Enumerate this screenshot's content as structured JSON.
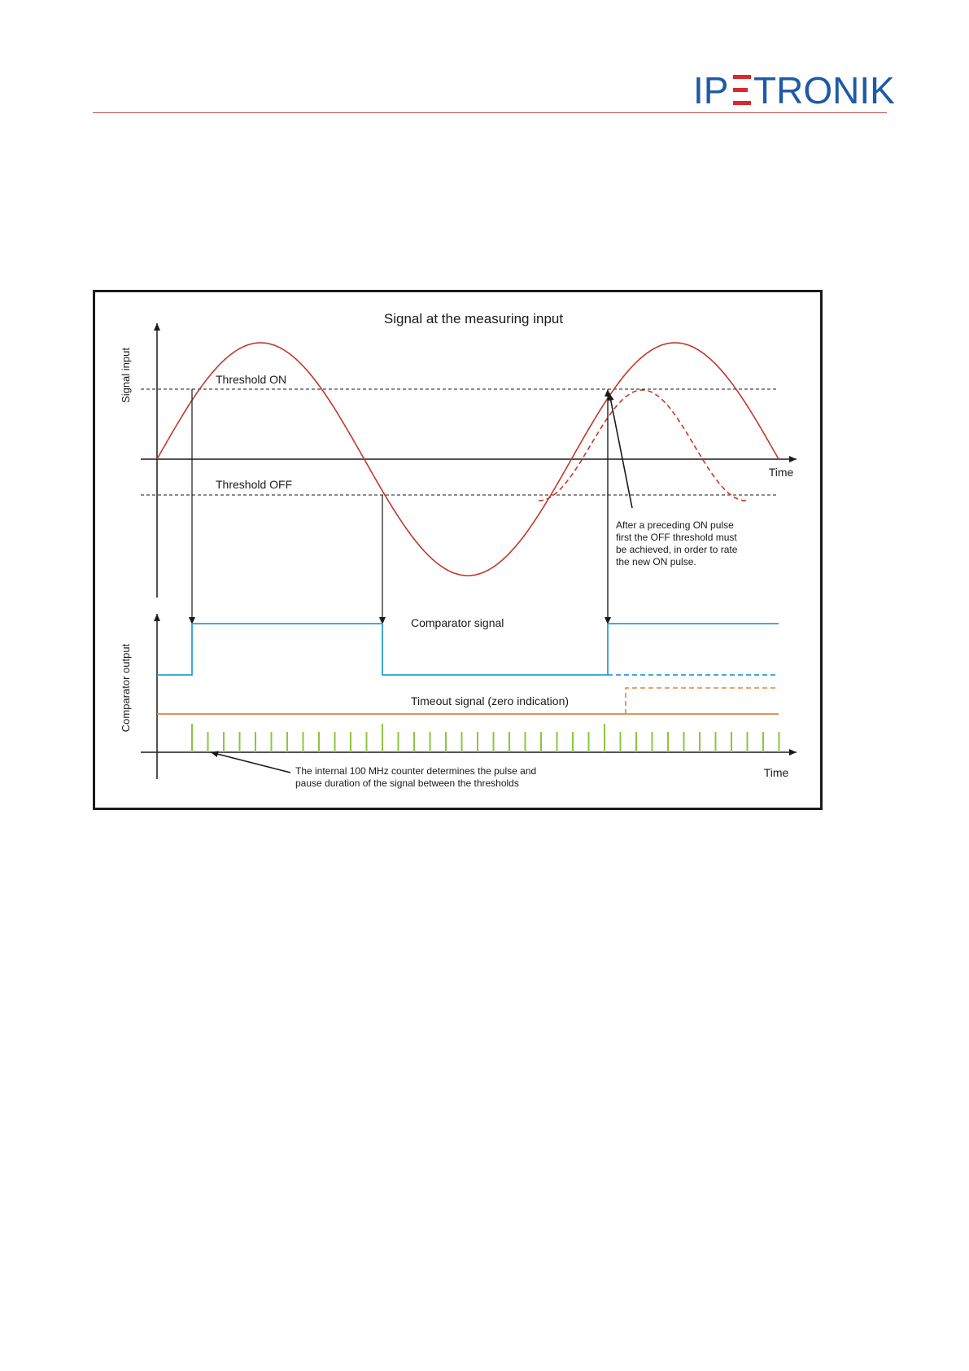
{
  "header": {
    "logo": {
      "text": "IPETRONIK",
      "parts": [
        "IP",
        "E",
        "TRONIK"
      ],
      "colors": {
        "main": "#1f5aa6",
        "accent": "#d9282f"
      }
    },
    "rule_color": "#c0504d"
  },
  "figure": {
    "title": "Signal at the measuring input",
    "top_axis": {
      "ylabel": "Signal input",
      "xlabel": "Time"
    },
    "thresholds": {
      "on_label": "Threshold ON",
      "off_label": "Threshold OFF"
    },
    "note_reset": [
      "After a preceding ON pulse",
      "first the OFF threshold must",
      "be achieved, in order to rate",
      "the new ON pulse."
    ],
    "bottom_axis": {
      "ylabel": "Comparator output",
      "xlabel": "Time"
    },
    "comparator_label": "Comparator signal",
    "timeout_label": "Timeout signal (zero indication)",
    "note_counter": [
      "The internal 100 MHz counter determines the pulse and",
      "pause duration of the signal between the thresholds"
    ],
    "colors": {
      "signal": "#c0392b",
      "comparator": "#2a9fd6",
      "timeout": "#d98a3a",
      "counter": "#8cc63f",
      "axes": "#1a1a1a"
    }
  }
}
